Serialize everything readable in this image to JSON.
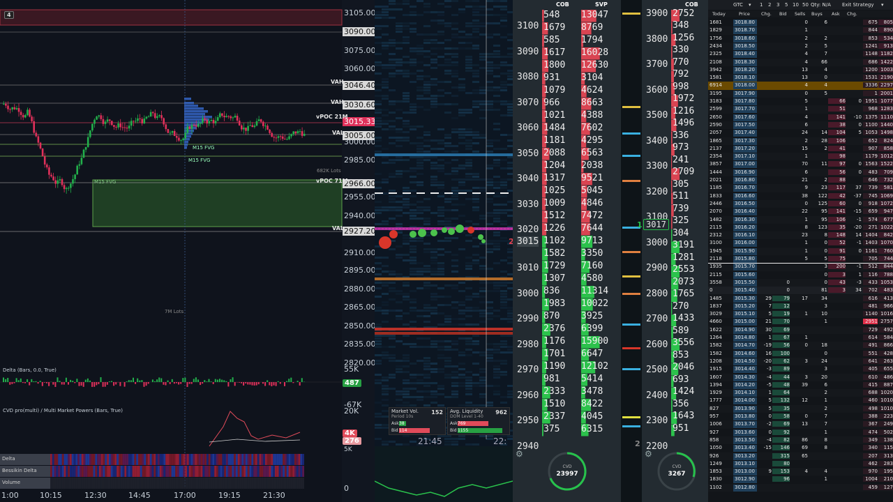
{
  "left_chart": {
    "timeframe_badge": "4",
    "price_axis": [
      "3105.00",
      "3090.00",
      "3075.00",
      "3060.00",
      "3046.40",
      "3030.60",
      "3015.33",
      "3005.00",
      "3000.00",
      "2985.00",
      "2966.00",
      "2955.00",
      "2940.00",
      "2927.20",
      "2910.00",
      "2895.00",
      "2880.00",
      "2865.00",
      "2850.00",
      "2835.00",
      "2820.00"
    ],
    "level_labels": {
      "vah1": "VAH",
      "vah2": "VAH",
      "vpoc21": "vPOC 21M",
      "val1": "VAL",
      "vpoc71": "vPOC 71M",
      "val2": "VAL"
    },
    "fvg_labels": {
      "m15_fvg_a": "M15 FVG",
      "m15_fvg_b": "M15 FVG",
      "m15_fvg_c": "M15 FVG"
    },
    "lots_labels": {
      "a": "682K Lots",
      "b": "7M Lots"
    },
    "delta_panel": {
      "title": "Delta (Bars, 0.0, True)",
      "top": "55K",
      "value": "487",
      "bottom": "-67K"
    },
    "cvd_panel": {
      "title": "CVD pro(multi) / Multi Market Powers (Bars, True)",
      "top": "20K",
      "value1": "4K",
      "value2": "276",
      "bottom": "5K",
      "zero": "0"
    },
    "heat_rows": [
      "Delta",
      "Bessikin Delta",
      "Volume"
    ],
    "time_axis": [
      "1:00",
      "10:15",
      "12:30",
      "14:45",
      "17:00",
      "19:15",
      "21:30"
    ]
  },
  "heatmap": {
    "price_tag": "3015",
    "marker": "2",
    "time_labels": [
      "21:45",
      "22:"
    ],
    "market_vol": {
      "title": "Market Vol.",
      "period": "Period 10s",
      "value": "152",
      "ask_label": "Ask",
      "ask": "38",
      "bid_label": "Bid",
      "bid": "114"
    },
    "avg_liq": {
      "title": "Avg. Liquidity",
      "level": "DOM Level 1-40",
      "value": "962",
      "ask_label": "Ask",
      "ask": "769",
      "bid_label": "Bid",
      "bid": "1155"
    }
  },
  "ladder1": {
    "head_cob": "COB",
    "head_svp": "SVP",
    "prices": [
      "3100",
      "3090",
      "3080",
      "3070",
      "3060",
      "3050",
      "3040",
      "3030",
      "3020",
      "3015",
      "3010",
      "3000",
      "2990",
      "2980",
      "2970",
      "2960",
      "2950",
      "2940"
    ],
    "cob": [
      "548",
      "1679",
      "585",
      "1617",
      "1800",
      "931",
      "1079",
      "966",
      "1021",
      "1484",
      "1181",
      "2088",
      "1204",
      "1317",
      "1025",
      "1009",
      "1512",
      "1226",
      "1102",
      "1582",
      "1729",
      "1307",
      "836",
      "1983",
      "870",
      "2376",
      "1176",
      "1701",
      "1190",
      "981",
      "2333",
      "1510",
      "2337",
      "375"
    ],
    "svp": [
      "13047",
      "8769",
      "1794",
      "16028",
      "12630",
      "3104",
      "4624",
      "8663",
      "4388",
      "7602",
      "4295",
      "6563",
      "2038",
      "9521",
      "5045",
      "4846",
      "7472",
      "7644",
      "9713",
      "3350",
      "7160",
      "4580",
      "11314",
      "10022",
      "3925",
      "6399",
      "15900",
      "6647",
      "12102",
      "5414",
      "3478",
      "8422",
      "4045",
      "6315"
    ],
    "gauge": {
      "label": "CVD",
      "value": "23997"
    },
    "current_price": "3017",
    "marker": "1",
    "bottom_tag": "2"
  },
  "ladder2": {
    "head_cob": "COB",
    "prices": [
      "3900",
      "3800",
      "3700",
      "3600",
      "3500",
      "3400",
      "3300",
      "3200",
      "3100",
      "3000",
      "2900",
      "2800",
      "2700",
      "2600",
      "2500",
      "2400",
      "2300",
      "2200"
    ],
    "values": [
      "2752",
      "348",
      "1256",
      "330",
      "770",
      "792",
      "998",
      "1972",
      "1216",
      "1496",
      "336",
      "973",
      "241",
      "2709",
      "305",
      "511",
      "739",
      "325",
      "304",
      "3191",
      "1281",
      "2553",
      "2073",
      "1765",
      "270",
      "1433",
      "589",
      "3556",
      "853",
      "2046",
      "693",
      "1424",
      "356",
      "1643",
      "951"
    ],
    "gauge": {
      "label": "CVD",
      "value": "3267"
    }
  },
  "dom": {
    "toolbar": {
      "tif": "GTC",
      "q1": "1",
      "q2": "2",
      "q3": "3",
      "q5": "5",
      "q10": "10",
      "q50": "50",
      "qty": "Qty: N/A",
      "exit": "Exit Strategy"
    },
    "headers": [
      "Today",
      "Price",
      "Chg.",
      "Bid",
      "Sells",
      "Buys",
      "Ask",
      "Chg."
    ],
    "rows": [
      [
        "1681",
        "3018.80",
        "",
        "",
        "0",
        "6",
        "",
        "",
        "675",
        "805"
      ],
      [
        "1829",
        "3018.70",
        "",
        "",
        "1",
        "",
        "",
        "",
        "844",
        "890"
      ],
      [
        "1756",
        "3018.60",
        "",
        "",
        "2",
        "2",
        "",
        "",
        "853",
        "534"
      ],
      [
        "2434",
        "3018.50",
        "",
        "",
        "2",
        "5",
        "",
        "",
        "1241",
        "913"
      ],
      [
        "2325",
        "3018.40",
        "",
        "",
        "4",
        "7",
        "",
        "",
        "1148",
        "1182"
      ],
      [
        "2108",
        "3018.30",
        "",
        "",
        "4",
        "66",
        "",
        "",
        "686",
        "1422"
      ],
      [
        "3942",
        "3018.20",
        "",
        "",
        "13",
        "4",
        "",
        "",
        "1200",
        "1003"
      ],
      [
        "1581",
        "3018.10",
        "",
        "",
        "13",
        "0",
        "",
        "",
        "1531",
        "2190"
      ],
      [
        "6914",
        "3018.00",
        "",
        "",
        "4",
        "4",
        "",
        "",
        "3336",
        "2297"
      ],
      [
        "3195",
        "3017.90",
        "",
        "",
        "0",
        "5",
        "",
        "",
        "1",
        "2001"
      ],
      [
        "3183",
        "3017.80",
        "",
        "",
        "5",
        "",
        "66",
        "0",
        "1951",
        "1077"
      ],
      [
        "2599",
        "3017.70",
        "",
        "",
        "1",
        "",
        "51",
        "",
        "968",
        "1283"
      ],
      [
        "2650",
        "3017.60",
        "",
        "",
        "4",
        "",
        "141",
        "-10",
        "1375",
        "1110"
      ],
      [
        "2590",
        "3017.50",
        "",
        "",
        "6",
        "",
        "38",
        "0",
        "1100",
        "1440"
      ],
      [
        "2057",
        "3017.40",
        "",
        "",
        "24",
        "14",
        "104",
        "5",
        "1053",
        "1498"
      ],
      [
        "1865",
        "3017.30",
        "",
        "",
        "2",
        "28",
        "106",
        "",
        "652",
        "824"
      ],
      [
        "2137",
        "3017.20",
        "",
        "",
        "15",
        "2",
        "41",
        "",
        "907",
        "858"
      ],
      [
        "2354",
        "3017.10",
        "",
        "",
        "1",
        "",
        "98",
        "",
        "1179",
        "1012"
      ],
      [
        "3857",
        "3017.00",
        "",
        "",
        "70",
        "11",
        "97",
        "0",
        "1563",
        "1522"
      ],
      [
        "1444",
        "3016.90",
        "",
        "",
        "6",
        "",
        "56",
        "0",
        "483",
        "709"
      ],
      [
        "2021",
        "3016.80",
        "",
        "",
        "21",
        "2",
        "88",
        "",
        "646",
        "732"
      ],
      [
        "1185",
        "3016.70",
        "",
        "",
        "9",
        "23",
        "117",
        "37",
        "739",
        "581"
      ],
      [
        "1833",
        "3016.60",
        "",
        "",
        "38",
        "122",
        "42",
        "-37",
        "745",
        "1069"
      ],
      [
        "2446",
        "3016.50",
        "",
        "",
        "0",
        "125",
        "60",
        "0",
        "918",
        "1072"
      ],
      [
        "2070",
        "3016.40",
        "",
        "",
        "22",
        "95",
        "141",
        "-15",
        "659",
        "947"
      ],
      [
        "1482",
        "3016.30",
        "",
        "",
        "1",
        "95",
        "106",
        "-1",
        "574",
        "677"
      ],
      [
        "2115",
        "3016.20",
        "",
        "",
        "8",
        "123",
        "35",
        "-20",
        "271",
        "1022"
      ],
      [
        "2312",
        "3016.10",
        "",
        "",
        "23",
        "8",
        "148",
        "14",
        "1404",
        "842"
      ],
      [
        "3100",
        "3016.00",
        "",
        "",
        "1",
        "0",
        "52",
        "-1",
        "1403",
        "1070"
      ],
      [
        "1945",
        "3015.90",
        "",
        "",
        "1",
        "0",
        "91",
        "0",
        "1161",
        "760"
      ],
      [
        "2118",
        "3015.80",
        "",
        "",
        "5",
        "5",
        "75",
        "",
        "705",
        "744"
      ],
      [
        "1935",
        "3015.70",
        "",
        "",
        "",
        "3",
        "200",
        "-1",
        "512",
        "844"
      ],
      [
        "2115",
        "3015.60",
        "",
        "",
        "",
        "0",
        "3",
        "1",
        "116",
        "788"
      ],
      [
        "3558",
        "3015.50",
        "",
        "0",
        "",
        "0",
        "43",
        "-3",
        "433",
        "1053"
      ],
      [
        "0",
        "3015.40",
        "",
        "0",
        "",
        "81",
        "3",
        "34",
        "702",
        "483"
      ],
      [
        "1485",
        "3015.30",
        "29",
        "79",
        "17",
        "34",
        "",
        "",
        "616",
        "413"
      ],
      [
        "1837",
        "3015.20",
        "7",
        "12",
        "",
        "3",
        "",
        "",
        "481",
        "966"
      ],
      [
        "3029",
        "3015.10",
        "5",
        "19",
        "1",
        "10",
        "",
        "",
        "1140",
        "1016"
      ],
      [
        "4660",
        "3015.00",
        "21",
        "70",
        "",
        "1",
        "",
        "",
        "2951",
        "2757"
      ],
      [
        "1622",
        "3014.90",
        "30",
        "69",
        "",
        "",
        "",
        "",
        "729",
        "492"
      ],
      [
        "1264",
        "3014.80",
        "1",
        "67",
        "1",
        "",
        "",
        "",
        "614",
        "584"
      ],
      [
        "1582",
        "3014.70",
        "-19",
        "56",
        "0",
        "18",
        "",
        "",
        "491",
        "866"
      ],
      [
        "1582",
        "3014.60",
        "16",
        "100",
        "",
        "0",
        "",
        "",
        "551",
        "428"
      ],
      [
        "1208",
        "3014.50",
        "-20",
        "62",
        "3",
        "24",
        "",
        "",
        "641",
        "263"
      ],
      [
        "1915",
        "3014.40",
        "-3",
        "89",
        "",
        "3",
        "",
        "",
        "405",
        "655"
      ],
      [
        "1607",
        "3014.30",
        "-4",
        "44",
        "3",
        "20",
        "",
        "",
        "610",
        "486"
      ],
      [
        "1394",
        "3014.20",
        "-5",
        "48",
        "39",
        "6",
        "",
        "",
        "415",
        "887"
      ],
      [
        "1929",
        "3014.10",
        "1",
        "64",
        "",
        "2",
        "",
        "",
        "688",
        "1020"
      ],
      [
        "1777",
        "3014.00",
        "5",
        "132",
        "12",
        "1",
        "",
        "",
        "460",
        "1010"
      ],
      [
        "827",
        "3013.90",
        "5",
        "35",
        "",
        "2",
        "",
        "",
        "498",
        "1010"
      ],
      [
        "957",
        "3013.80",
        "0",
        "58",
        "0",
        "7",
        "",
        "",
        "388",
        "223"
      ],
      [
        "1006",
        "3013.70",
        "-2",
        "69",
        "13",
        "7",
        "",
        "",
        "367",
        "249"
      ],
      [
        "927",
        "3013.60",
        "0",
        "92",
        "",
        "1",
        "",
        "",
        "474",
        "502"
      ],
      [
        "858",
        "3013.50",
        "-4",
        "82",
        "86",
        "8",
        "",
        "",
        "349",
        "138"
      ],
      [
        "1050",
        "3013.40",
        "-15",
        "146",
        "69",
        "8",
        "",
        "",
        "340",
        "115"
      ],
      [
        "926",
        "3013.20",
        "",
        "315",
        "65",
        "",
        "",
        "",
        "207",
        "313"
      ],
      [
        "1249",
        "3013.10",
        "",
        "80",
        "",
        "",
        "",
        "",
        "462",
        "283"
      ],
      [
        "1853",
        "3013.00",
        "9",
        "153",
        "4",
        "4",
        "",
        "",
        "970",
        "195"
      ],
      [
        "1830",
        "3012.90",
        "",
        "96",
        "",
        "1",
        "",
        "",
        "1004",
        "210"
      ],
      [
        "1102",
        "3012.80",
        "",
        "",
        "",
        "",
        "",
        "",
        "459",
        "127"
      ]
    ]
  }
}
